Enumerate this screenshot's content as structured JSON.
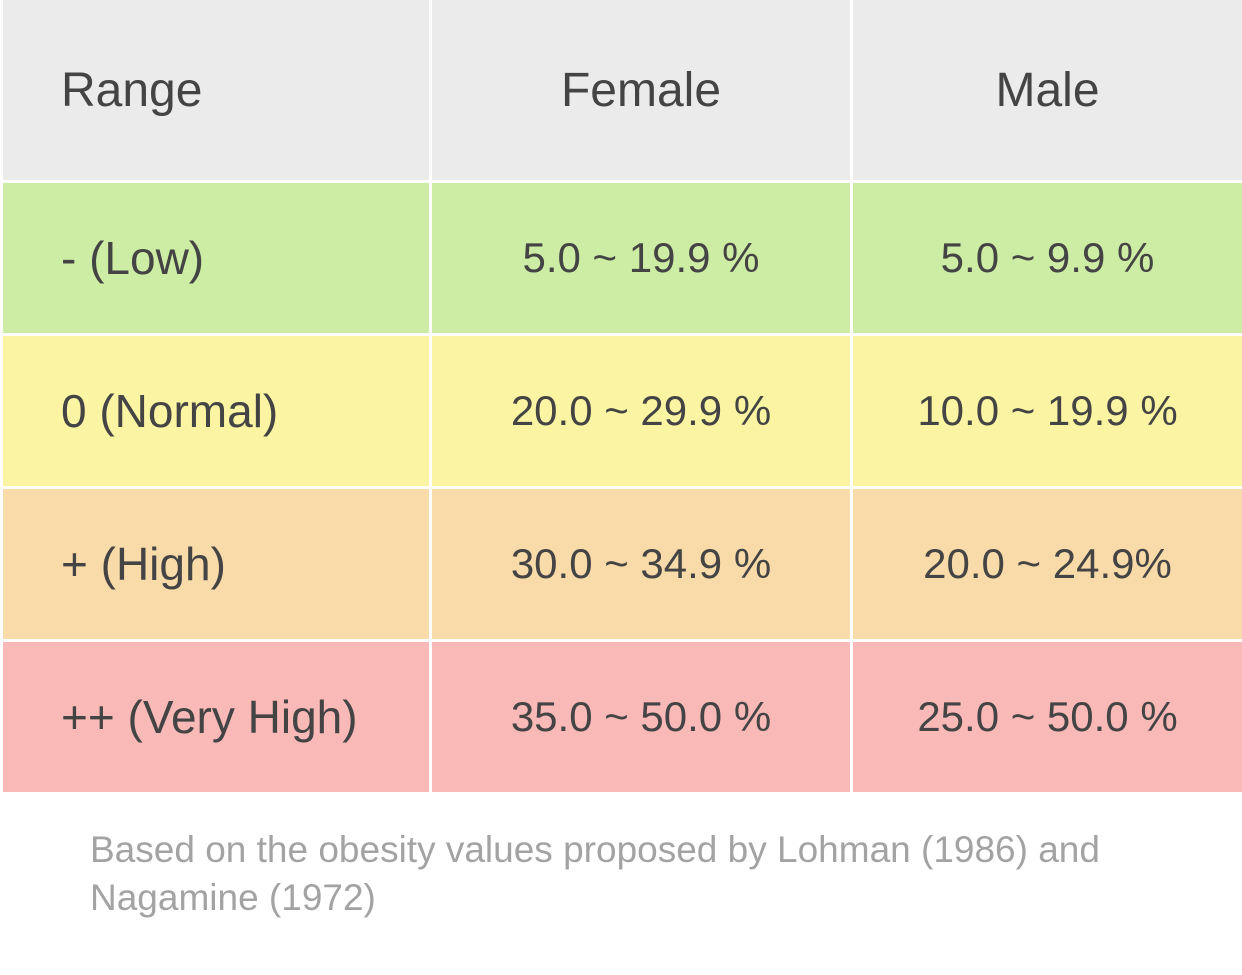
{
  "table": {
    "headers": [
      "Range",
      "Female",
      "Male"
    ],
    "rows": [
      {
        "range": "- (Low)",
        "female": "5.0 ~ 19.9 %",
        "male": "5.0 ~ 9.9 %",
        "color": "#cdeda5"
      },
      {
        "range": "0 (Normal)",
        "female": "20.0 ~ 29.9 %",
        "male": "10.0 ~ 19.9 %",
        "color": "#fbf5a3"
      },
      {
        "range": "+ (High)",
        "female": "30.0 ~ 34.9 %",
        "male": "20.0 ~ 24.9%",
        "color": "#f9dba9"
      },
      {
        "range": "++ (Very High)",
        "female": "35.0 ~ 50.0 %",
        "male": "25.0 ~ 50.0 %",
        "color": "#f9b9b7"
      }
    ],
    "header_color": "#ebebeb"
  },
  "footnote": "Based on the obesity values proposed by Lohman (1986) and Nagamine (1972)"
}
